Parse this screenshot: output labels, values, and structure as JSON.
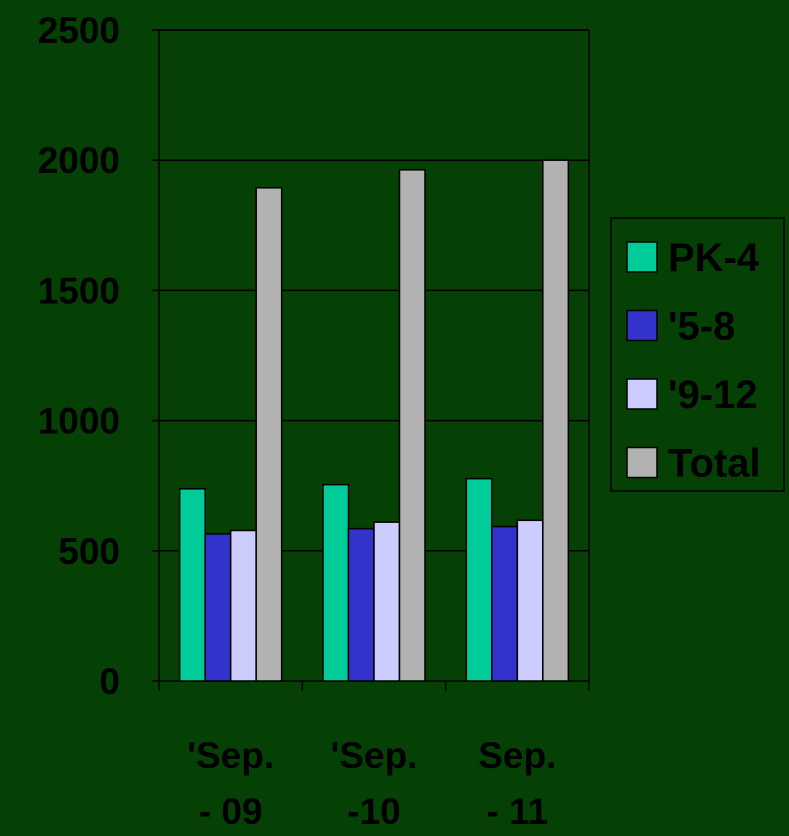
{
  "chart_data": {
    "type": "bar",
    "categories": [
      "'Sep.\n- 09",
      "'Sep.\n-10",
      "Sep.\n- 11"
    ],
    "series": [
      {
        "name": "PK-4",
        "values": [
          738,
          754,
          777
        ],
        "color": "#00CC99"
      },
      {
        "name": "'5-8",
        "values": [
          565,
          585,
          593
        ],
        "color": "#3333CC"
      },
      {
        "name": "'9-12",
        "values": [
          578,
          610,
          617
        ],
        "color": "#CCCCFF"
      },
      {
        "name": "Total",
        "values": [
          1894,
          1963,
          2000
        ],
        "color": "#B2B2B2"
      }
    ],
    "y_ticks": [
      "0",
      "500",
      "1000",
      "1500",
      "2000",
      "2500"
    ],
    "ylim": [
      0,
      2500
    ],
    "grid": true,
    "legend_position": "right",
    "background_color": "#054004",
    "axis_color": "#000000"
  }
}
